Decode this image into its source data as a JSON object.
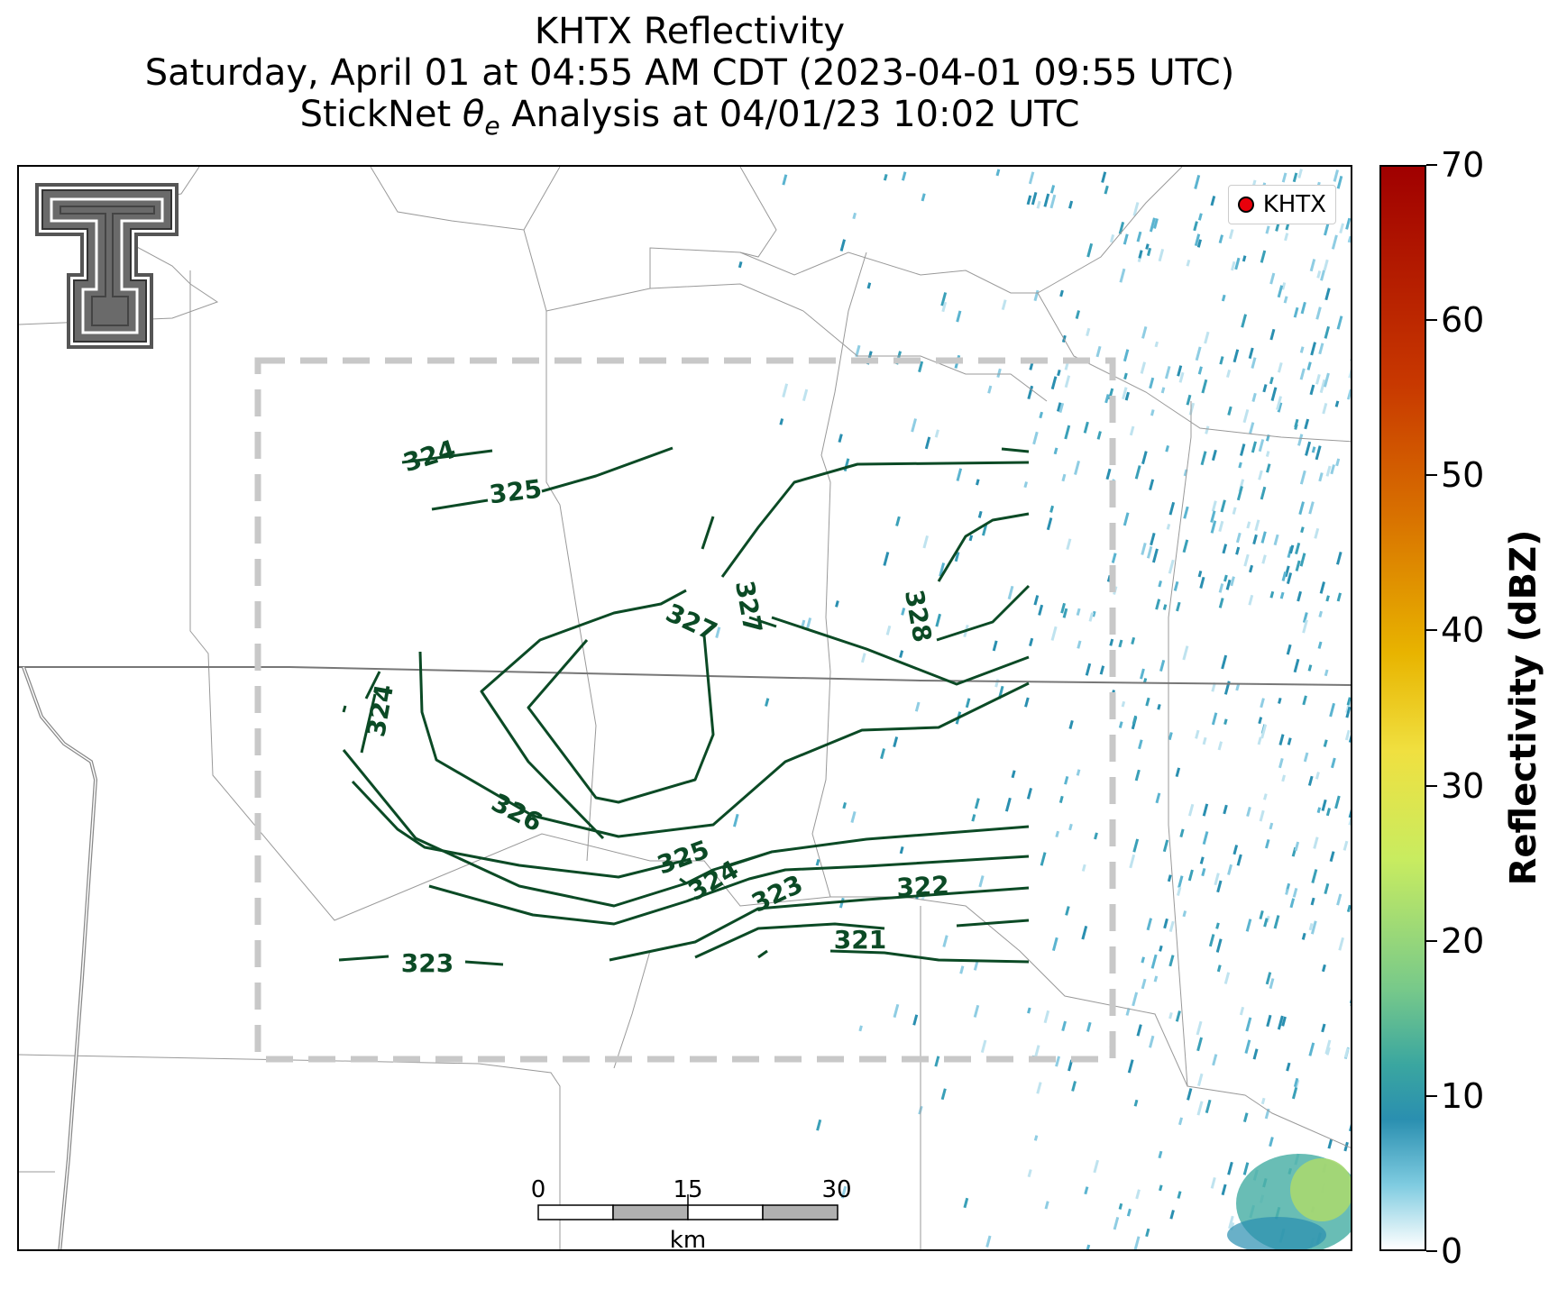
{
  "title": {
    "line1": "KHTX Reflectivity",
    "line2": "Saturday, April 01 at 04:55 AM CDT (2023-04-01 09:55 UTC)",
    "line3_prefix": "StickNet ",
    "line3_symbol": "θ",
    "line3_sub": "e",
    "line3_suffix": " Analysis at 04/01/23 10:02 UTC"
  },
  "legend": {
    "label": "KHTX"
  },
  "colorbar": {
    "label": "Reflectivity (dBZ)",
    "ticks": [
      "0",
      "10",
      "20",
      "30",
      "40",
      "50",
      "60",
      "70"
    ],
    "range": [
      0,
      70
    ]
  },
  "scalebar": {
    "labels": [
      "0",
      "15",
      "30"
    ],
    "unit": "km"
  },
  "contour_labels": [
    "324",
    "325",
    "327",
    "327",
    "328",
    "324",
    "326",
    "325",
    "324",
    "323",
    "322",
    "321",
    "323"
  ],
  "colors": {
    "contour": "#0b4a25",
    "box": "#c8c8c8",
    "radar_marker": "#e8000b"
  }
}
